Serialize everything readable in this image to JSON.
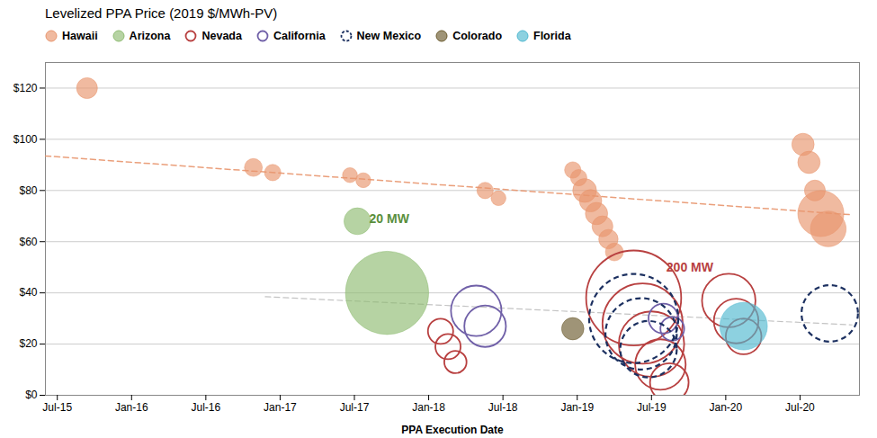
{
  "chart_data": {
    "type": "scatter",
    "title": "Levelized PPA Price (2019 $/MWh-PV)",
    "xlabel": "PPA Execution Date",
    "xlim": [
      2015.42,
      2020.9
    ],
    "xticks": [
      {
        "value": 2015.5,
        "label": "Jul-15"
      },
      {
        "value": 2016.0,
        "label": "Jan-16"
      },
      {
        "value": 2016.5,
        "label": "Jul-16"
      },
      {
        "value": 2017.0,
        "label": "Jan-17"
      },
      {
        "value": 2017.5,
        "label": "Jul-17"
      },
      {
        "value": 2018.0,
        "label": "Jan-18"
      },
      {
        "value": 2018.5,
        "label": "Jul-18"
      },
      {
        "value": 2019.0,
        "label": "Jan-19"
      },
      {
        "value": 2019.5,
        "label": "Jul-19"
      },
      {
        "value": 2020.0,
        "label": "Jan-20"
      },
      {
        "value": 2020.5,
        "label": "Jul-20"
      }
    ],
    "ylim": [
      0,
      130
    ],
    "yticks": [
      {
        "value": 0,
        "label": "$0"
      },
      {
        "value": 20,
        "label": "$20"
      },
      {
        "value": 40,
        "label": "$40"
      },
      {
        "value": 60,
        "label": "$60"
      },
      {
        "value": 80,
        "label": "$80"
      },
      {
        "value": 100,
        "label": "$100"
      },
      {
        "value": 120,
        "label": "$120"
      }
    ],
    "grid": true,
    "legend": "upper left",
    "series": [
      {
        "name": "Hawaii",
        "color": "#E8956D",
        "marker": "circle",
        "x": [
          2015.7,
          2016.82,
          2016.95,
          2017.47,
          2017.56,
          2018.38,
          2018.47,
          2018.97,
          2019.01,
          2019.05,
          2019.09,
          2019.13,
          2019.17,
          2019.21,
          2019.25,
          2020.52,
          2020.56,
          2020.6,
          2020.64,
          2020.69
        ],
        "y": [
          120,
          89,
          87,
          86,
          84,
          80,
          77,
          88,
          85,
          80,
          76,
          71,
          66,
          61,
          56,
          98,
          91,
          80,
          71,
          65
        ],
        "radius": [
          0.07,
          0.06,
          0.055,
          0.05,
          0.05,
          0.055,
          0.05,
          0.055,
          0.055,
          0.08,
          0.075,
          0.075,
          0.07,
          0.065,
          0.06,
          0.075,
          0.075,
          0.07,
          0.155,
          0.12
        ]
      },
      {
        "name": "Arizona",
        "color": "#8FBC72",
        "marker": "circle",
        "x": [
          2017.72,
          2017.52
        ],
        "y": [
          40,
          68
        ],
        "radius": [
          0.28,
          0.09
        ]
      },
      {
        "name": "Nevada",
        "color": "#B84040",
        "marker": "open_circle",
        "x": [
          2018.08,
          2018.13,
          2018.18,
          2019.38,
          2019.44,
          2019.5,
          2019.56,
          2019.62,
          2020.02,
          2020.07,
          2020.12
        ],
        "y": [
          25,
          19,
          13,
          38,
          28,
          20,
          12,
          5,
          37,
          29,
          23
        ],
        "radius": [
          0.085,
          0.085,
          0.075,
          0.32,
          0.27,
          0.22,
          0.17,
          0.13,
          0.18,
          0.15,
          0.12
        ]
      },
      {
        "name": "California",
        "color": "#7060A8",
        "marker": "open_circle",
        "x": [
          2018.32,
          2018.38,
          2019.58,
          2019.64
        ],
        "y": [
          33,
          27,
          30,
          26
        ],
        "radius": [
          0.17,
          0.14,
          0.1,
          0.08
        ]
      },
      {
        "name": "New Mexico",
        "color": "#1C3060",
        "marker": "open_circle",
        "line_style": "dashed",
        "x": [
          2019.38,
          2019.43,
          2019.48,
          2020.7
        ],
        "y": [
          30,
          24,
          18,
          32
        ],
        "radius": [
          0.3,
          0.24,
          0.19,
          0.19
        ]
      },
      {
        "name": "Colorado",
        "color": "#6B5B2E",
        "marker": "circle",
        "x": [
          2018.97
        ],
        "y": [
          26
        ],
        "radius": [
          0.075
        ]
      },
      {
        "name": "Florida",
        "color": "#50B8D0",
        "marker": "circle",
        "x": [
          2020.12
        ],
        "y": [
          27
        ],
        "radius": [
          0.16
        ]
      }
    ],
    "trend_lines": [
      {
        "x": [
          2015.42,
          2020.85
        ],
        "y": [
          93.5,
          70.5
        ],
        "color": "#E8956D",
        "line_style": "dashed"
      },
      {
        "x": [
          2016.9,
          2020.85
        ],
        "y": [
          38.5,
          27.5
        ],
        "color": "#AAAAAA",
        "line_style": "dashed"
      }
    ],
    "annotations": [
      {
        "x": 2017.6,
        "y": 69,
        "text": "20 MW",
        "color": "#5A8F3C"
      },
      {
        "x": 2019.6,
        "y": 50,
        "text": "200 MW",
        "color": "#B84040"
      }
    ]
  }
}
